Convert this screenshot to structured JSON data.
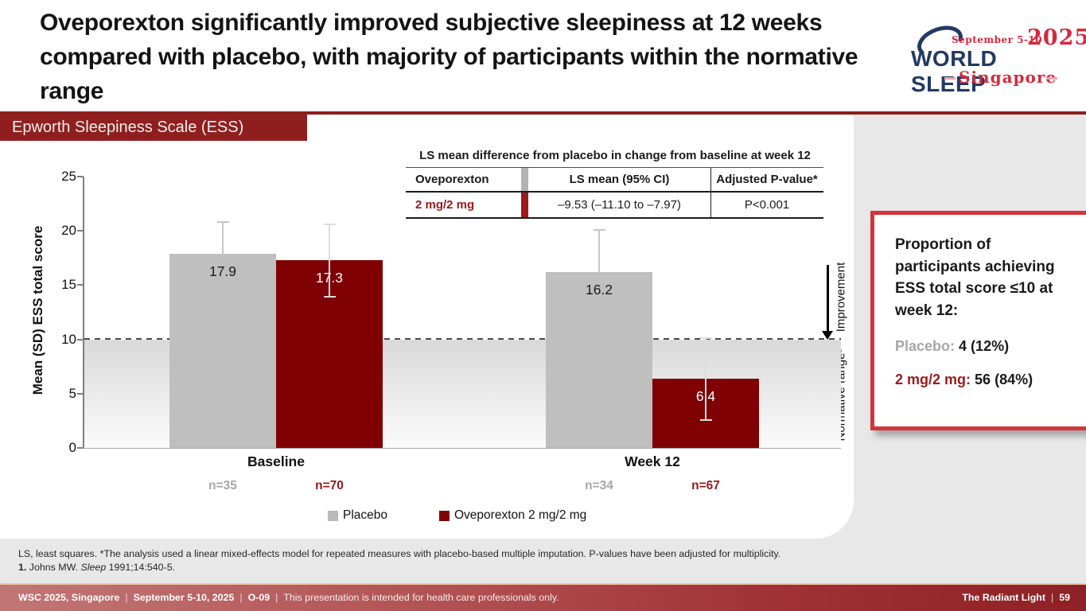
{
  "header": {
    "title": "Oveporexton significantly improved subjective sleepiness at 12 weeks compared with placebo, with majority of participants within the normative range",
    "logo": {
      "dates": "September 5-10",
      "year": "2025",
      "name": "WORLD SLEEP",
      "city": "Singapore"
    }
  },
  "section_badge": "Epworth Sleepiness Scale (ESS)",
  "stats_table": {
    "title": "LS mean difference from placebo in change from baseline at week 12",
    "columns": [
      "Oveporexton",
      "LS mean (95% CI)",
      "Adjusted P-value*"
    ],
    "rows": [
      {
        "label": "2 mg/2 mg",
        "ls_mean": "–9.53 (–11.10 to –7.97)",
        "p_value": "P<0.001"
      }
    ]
  },
  "chart_data": {
    "type": "bar",
    "title": "",
    "xlabel": "",
    "ylabel": "Mean (SD) ESS total score",
    "ylim": [
      0,
      25
    ],
    "yticks": [
      0,
      5,
      10,
      15,
      20,
      25
    ],
    "grid": false,
    "legend_position": "bottom",
    "categories": [
      "Baseline",
      "Week 12"
    ],
    "series": [
      {
        "name": "Placebo",
        "color": "#bfbfbf",
        "values": [
          17.9,
          16.2
        ],
        "err_upper": [
          20.8,
          20.1
        ],
        "err_lower": [
          null,
          null
        ],
        "n": [
          "n=35",
          "n=34"
        ],
        "label_color": "#1a1a1a",
        "n_color": "#a6a6a6",
        "err_color": "#c6c6c6"
      },
      {
        "name": "Oveporexton 2 mg/2 mg",
        "color": "#7f0103",
        "values": [
          17.3,
          6.4
        ],
        "err_upper": [
          20.6,
          10.1
        ],
        "err_lower": [
          13.9,
          2.6
        ],
        "n": [
          "n=70",
          "n=67"
        ],
        "label_color": "#ffffff",
        "n_color": "#941a1c",
        "err_color": "#dcdcdc"
      }
    ],
    "reference_line": {
      "y": 10,
      "style": "dashed"
    },
    "annotations": {
      "improvement": "Improvement",
      "normative": "Normative range¹"
    }
  },
  "side_panel": {
    "heading": "Proportion of participants achieving ESS total score ≤10 at week 12:",
    "placebo_label": "Placebo:",
    "placebo_value": "4 (12%)",
    "dose_label": "2 mg/2 mg:",
    "dose_value": "56 (84%)"
  },
  "footnotes": {
    "line1": "LS, least squares. *The analysis used a linear mixed-effects model for repeated measures with placebo-based multiple imputation. P-values have been adjusted for multiplicity.",
    "ref_num": "1.",
    "ref_pre": " Johns MW. ",
    "ref_journal": "Sleep",
    "ref_post": " 1991;14:540-5."
  },
  "footer": {
    "segments_bold": [
      "WSC 2025, Singapore",
      "September 5-10, 2025",
      "O-09"
    ],
    "separator": "|",
    "disclaimer": "This presentation is intended for health care professionals only.",
    "brand": "The Radiant Light",
    "page": "59"
  },
  "colors": {
    "accent_dark_red": "#7f0103",
    "accent_red_text": "#9a1b1d",
    "badge_red": "#8f1f1f",
    "placebo_gray": "#bfbfbf",
    "logo_navy": "#223a63",
    "logo_red": "#d5293d",
    "page_bg": "#e8e8e8"
  }
}
